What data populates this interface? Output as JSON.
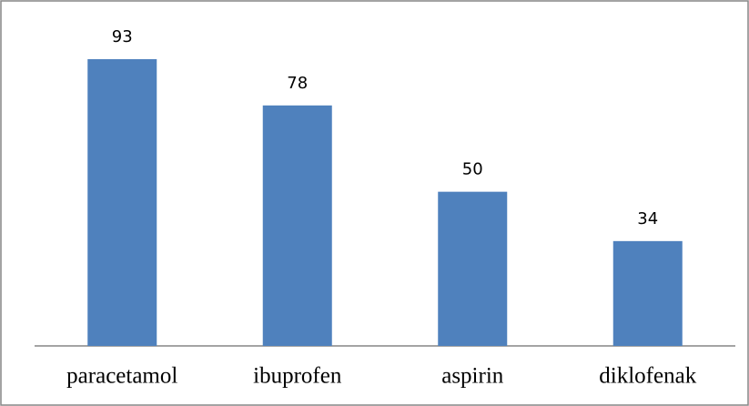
{
  "chart_data": {
    "type": "bar",
    "categories": [
      "paracetamol",
      "ibuprofen",
      "aspirin",
      "diklofenak"
    ],
    "values": [
      93,
      78,
      50,
      34
    ],
    "color": "#4f81bd",
    "ylim": [
      0,
      100
    ]
  }
}
